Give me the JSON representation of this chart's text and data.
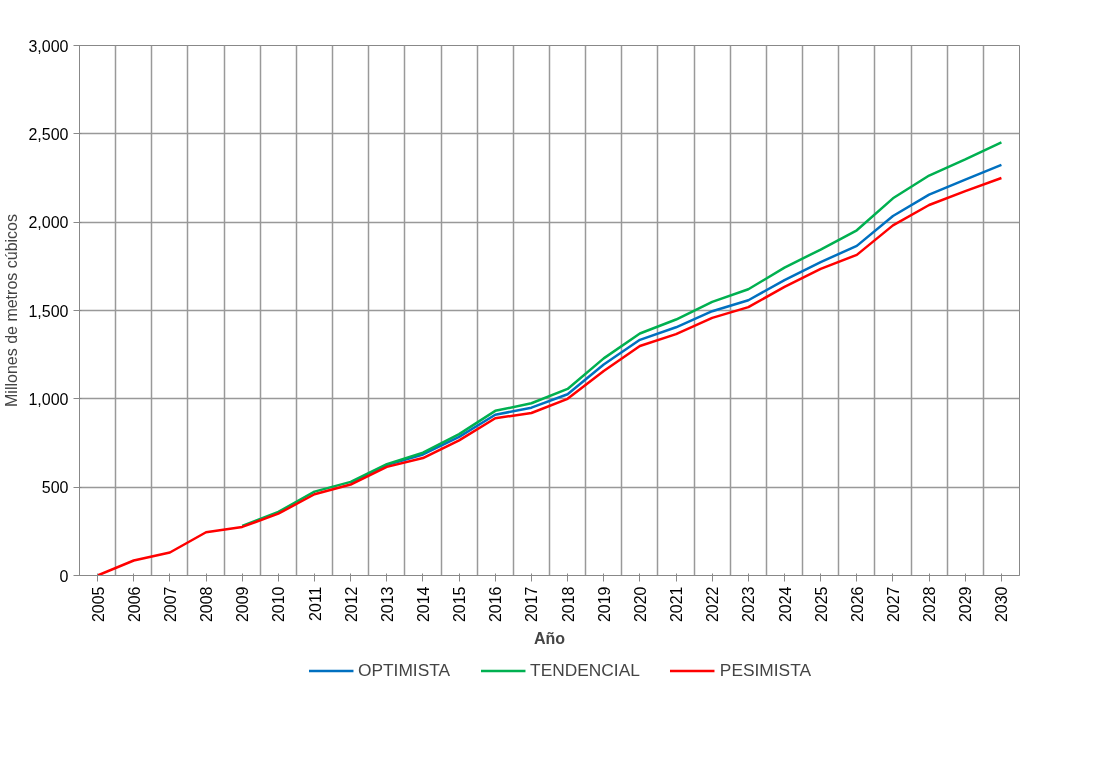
{
  "chart_data": {
    "type": "line",
    "xlabel": "Año",
    "ylabel": "Millones de metros cúbicos",
    "categories": [
      "2005",
      "2006",
      "2007",
      "2008",
      "2009",
      "2010",
      "2011",
      "2012",
      "2013",
      "2014",
      "2015",
      "2016",
      "2017",
      "2018",
      "2019",
      "2020",
      "2021",
      "2022",
      "2023",
      "2024",
      "2025",
      "2026",
      "2027",
      "2028",
      "2029",
      "2030"
    ],
    "series": [
      {
        "name": "OPTIMISTA",
        "color": "#0070c0",
        "values": [
          null,
          null,
          null,
          null,
          null,
          null,
          null,
          520,
          625,
          685,
          785,
          910,
          950,
          1026,
          1194,
          1334,
          1405,
          1496,
          1558,
          1672,
          1774,
          1866,
          2035,
          2156,
          2241,
          2324
        ]
      },
      {
        "name": "TENDENCIAL",
        "color": "#00b050",
        "values": [
          null,
          null,
          null,
          null,
          280,
          360,
          475,
          530,
          630,
          695,
          800,
          932,
          975,
          1056,
          1229,
          1370,
          1449,
          1549,
          1620,
          1743,
          1845,
          1954,
          2135,
          2264,
          2355,
          2452
        ]
      },
      {
        "name": "PESIMISTA",
        "color": "#ff0000",
        "values": [
          0,
          85,
          130,
          245,
          275,
          350,
          460,
          515,
          615,
          665,
          765,
          890,
          920,
          1000,
          1158,
          1299,
          1366,
          1458,
          1519,
          1634,
          1736,
          1815,
          1982,
          2097,
          2176,
          2250
        ]
      }
    ],
    "ylim": [
      0,
      3000
    ],
    "yticks": [
      0,
      500,
      {
        "value": 1000,
        "label": "1,000"
      },
      {
        "value": 1500,
        "label": "1,500"
      },
      {
        "value": 2000,
        "label": "2,000"
      },
      {
        "value": 2500,
        "label": "2,500"
      },
      {
        "value": 3000,
        "label": "3,000"
      }
    ],
    "grid": true,
    "legend": "bottom",
    "marker": "none",
    "line_style": "solid"
  }
}
